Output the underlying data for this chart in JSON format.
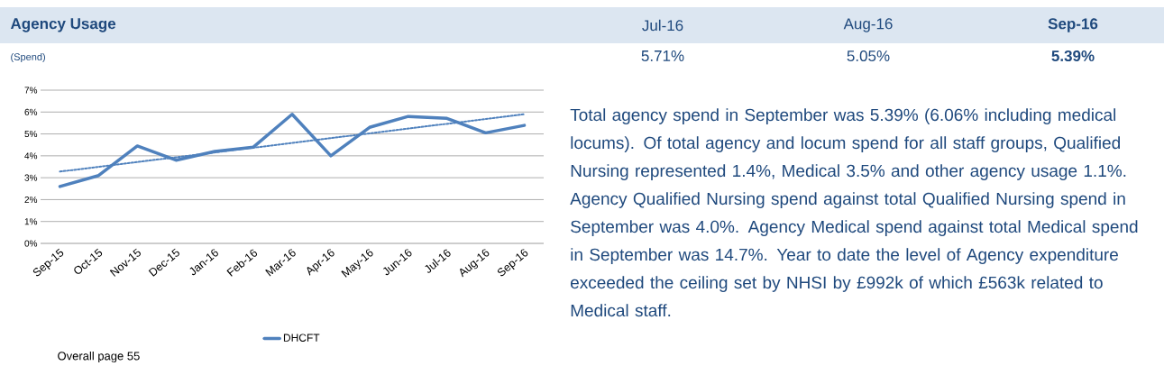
{
  "chart_data": {
    "type": "line",
    "title": "Agency Usage",
    "subtitle": "(Spend)",
    "categories": [
      "Sep-15",
      "Oct-15",
      "Nov-15",
      "Dec-15",
      "Jan-16",
      "Feb-16",
      "Mar-16",
      "Apr-16",
      "May-16",
      "Jun-16",
      "Jul-16",
      "Aug-16",
      "Sep-16"
    ],
    "series": [
      {
        "name": "DHCFT",
        "color": "#4f81bd",
        "values": [
          2.6,
          3.1,
          4.45,
          3.8,
          4.2,
          4.4,
          5.9,
          4.0,
          5.3,
          5.8,
          5.71,
          5.05,
          5.39
        ]
      },
      {
        "type": "line",
        "color": "#4f81bd",
        "line_style": "dotted",
        "values": [
          3.28,
          null,
          null,
          null,
          null,
          null,
          null,
          null,
          null,
          null,
          null,
          null,
          5.9
        ]
      }
    ],
    "ylim": [
      0,
      7
    ],
    "yticks": [
      {
        "value": 0,
        "label": "0%"
      },
      {
        "value": 1,
        "label": "1%"
      },
      {
        "value": 2,
        "label": "2%"
      },
      {
        "value": 3,
        "label": "3%"
      },
      {
        "value": 4,
        "label": "4%"
      },
      {
        "value": 5,
        "label": "5%"
      },
      {
        "value": 6,
        "label": "6%"
      },
      {
        "value": 7,
        "label": "7%"
      }
    ],
    "grid": "y",
    "legend": "bottom",
    "marker": "none",
    "line_style": "solid",
    "annotations": [
      "Jul-16",
      "Aug-16",
      "Sep-16",
      "5.71%",
      "5.05%",
      "5.39%",
      "Total agency spend in September was 5.39% (6.06% including medical locums). Of total agency and locum spend for all staff groups, Qualified Nursing represented 1.4%, Medical 3.5% and other agency usage 1.1%.  Agency Qualified Nursing spend against total Qualified Nursing spend in September was 4.0%. Agency Medical spend against total Medical spend in September was 14.7%. Year to date the level of Agency expenditure exceeded the ceiling set by NHSI by £992k of which £563k related to Medical staff.",
      "Overall page 55"
    ]
  }
}
